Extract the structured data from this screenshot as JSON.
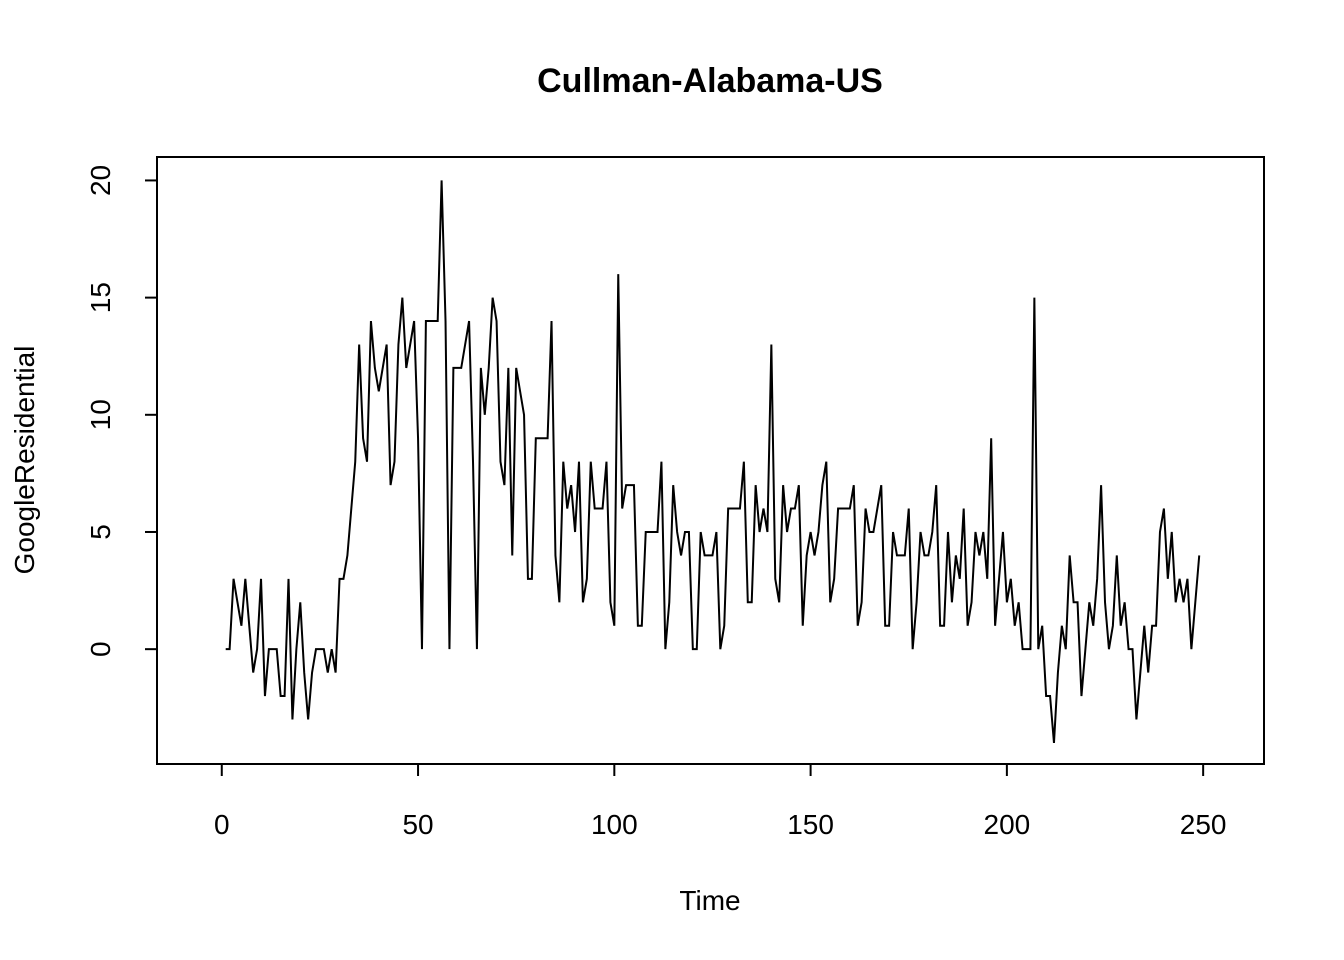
{
  "chart_data": {
    "type": "line",
    "title": "Cullman-Alabama-US",
    "xlabel": "Time",
    "ylabel": "GoogleResidential",
    "xlim": [
      -16.5,
      265.5
    ],
    "ylim": [
      -4.9,
      21.0
    ],
    "x_ticks": [
      0,
      50,
      100,
      150,
      200,
      250
    ],
    "y_ticks": [
      0,
      5,
      10,
      15,
      20
    ],
    "x_tick_labels": [
      "0",
      "50",
      "100",
      "150",
      "200",
      "250"
    ],
    "y_tick_labels": [
      "0",
      "5",
      "10",
      "15",
      "20"
    ],
    "line_color": "#000000",
    "grid": false,
    "x_start": 1,
    "values": [
      0,
      0,
      3,
      2,
      1,
      3,
      1,
      -1,
      0,
      3,
      -2,
      0,
      0,
      0,
      -2,
      -2,
      3,
      -3,
      0,
      2,
      -1,
      -3,
      -1,
      0,
      0,
      0,
      -1,
      0,
      -1,
      3,
      3,
      4,
      6,
      8,
      13,
      9,
      8,
      14,
      12,
      11,
      12,
      13,
      7,
      8,
      13,
      15,
      12,
      13,
      14,
      9,
      0,
      14,
      14,
      14,
      14,
      20,
      14,
      0,
      12,
      12,
      12,
      13,
      14,
      8,
      0,
      12,
      10,
      12,
      15,
      14,
      8,
      7,
      12,
      4,
      12,
      11,
      10,
      3,
      3,
      9,
      9,
      9,
      9,
      14,
      4,
      2,
      8,
      6,
      7,
      5,
      8,
      2,
      3,
      8,
      6,
      6,
      6,
      8,
      2,
      1,
      16,
      6,
      7,
      7,
      7,
      1,
      1,
      5,
      5,
      5,
      5,
      8,
      0,
      2,
      7,
      5,
      4,
      5,
      5,
      0,
      0,
      5,
      4,
      4,
      4,
      5,
      0,
      1,
      6,
      6,
      6,
      6,
      8,
      2,
      2,
      7,
      5,
      6,
      5,
      13,
      3,
      2,
      7,
      5,
      6,
      6,
      7,
      1,
      4,
      5,
      4,
      5,
      7,
      8,
      2,
      3,
      6,
      6,
      6,
      6,
      7,
      1,
      2,
      6,
      5,
      5,
      6,
      7,
      1,
      1,
      5,
      4,
      4,
      4,
      6,
      0,
      2,
      5,
      4,
      4,
      5,
      7,
      1,
      1,
      5,
      2,
      4,
      3,
      6,
      1,
      2,
      5,
      4,
      5,
      3,
      9,
      1,
      3,
      5,
      2,
      3,
      1,
      2,
      0,
      0,
      0,
      15,
      0,
      1,
      -2,
      -2,
      -4,
      -1,
      1,
      0,
      4,
      2,
      2,
      -2,
      0,
      2,
      1,
      3,
      7,
      2,
      0,
      1,
      4,
      1,
      2,
      0,
      0,
      -3,
      -1,
      1,
      -1,
      1,
      1,
      5,
      6,
      3,
      5,
      2,
      3,
      2,
      3,
      0,
      2,
      4
    ]
  }
}
